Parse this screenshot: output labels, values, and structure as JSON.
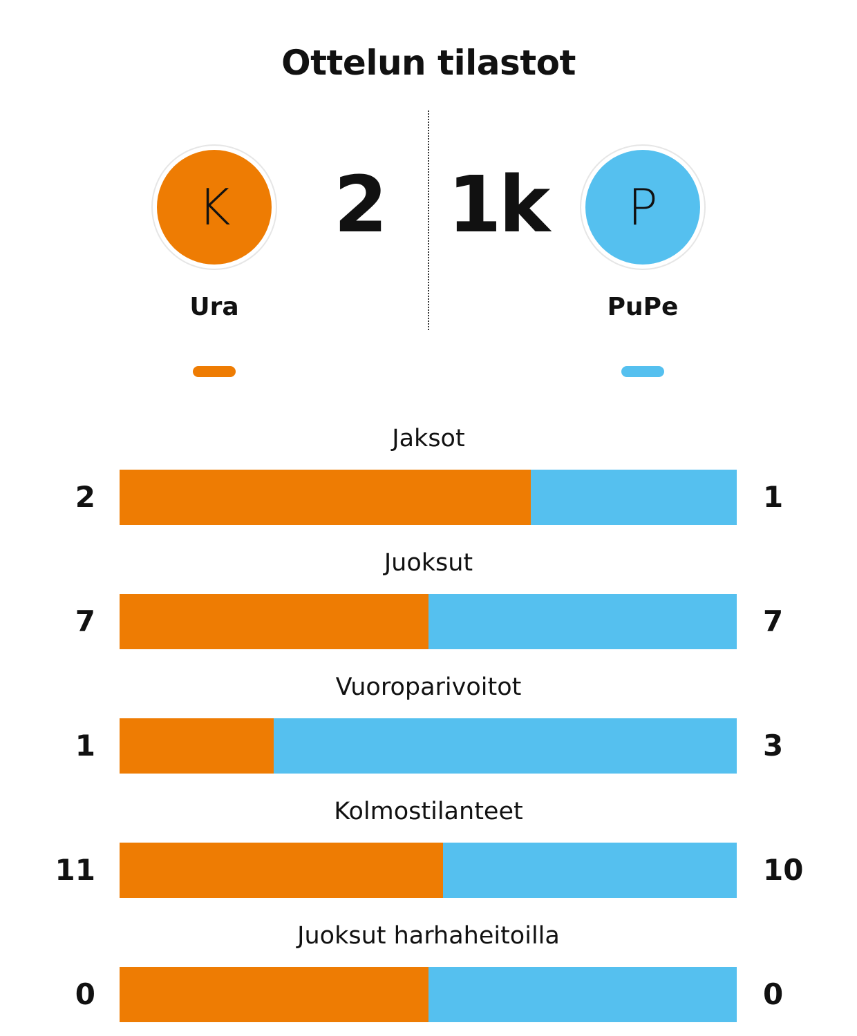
{
  "title": "Ottelun tilastot",
  "home": {
    "name": "Ura",
    "logo_letter": "K",
    "score": "2",
    "color": "#EE7C03"
  },
  "away": {
    "name": "PuPe",
    "logo_letter": "P",
    "score": "1k",
    "color": "#55C0EF"
  },
  "stats": [
    {
      "label": "Jaksot",
      "home": 2,
      "away": 1
    },
    {
      "label": "Juoksut",
      "home": 7,
      "away": 7
    },
    {
      "label": "Vuoroparivoitot",
      "home": 1,
      "away": 3
    },
    {
      "label": "Kolmostilanteet",
      "home": 11,
      "away": 10
    },
    {
      "label": "Juoksut harhaheitoilla",
      "home": 0,
      "away": 0
    }
  ],
  "chart_data": {
    "type": "bar",
    "title": "Ottelun tilastot",
    "categories": [
      "Jaksot",
      "Juoksut",
      "Vuoroparivoitot",
      "Kolmostilanteet",
      "Juoksut harhaheitoilla"
    ],
    "series": [
      {
        "name": "Ura",
        "values": [
          2,
          7,
          1,
          11,
          0
        ]
      },
      {
        "name": "PuPe",
        "values": [
          1,
          7,
          3,
          10,
          0
        ]
      }
    ]
  }
}
